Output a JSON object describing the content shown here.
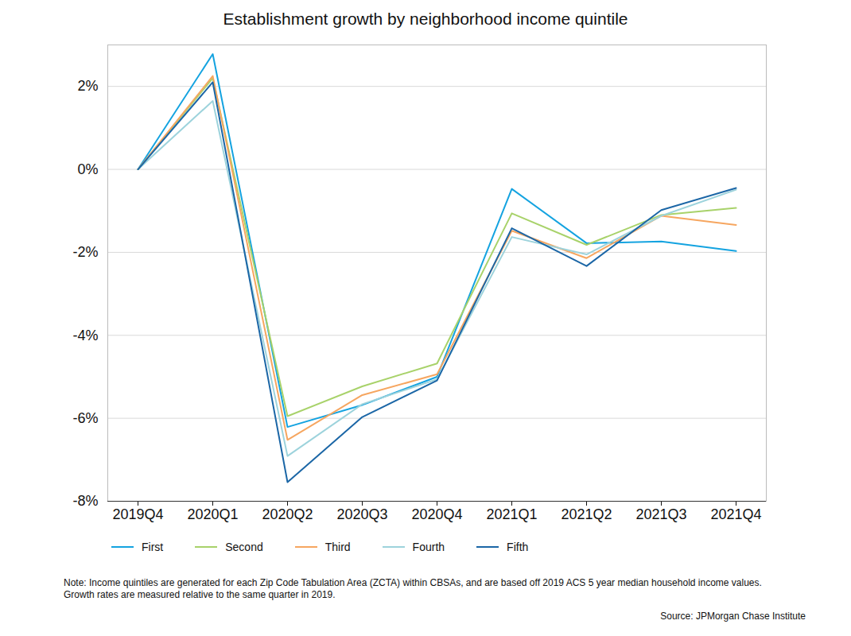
{
  "chart_data": {
    "type": "line",
    "title": "Establishment growth by neighborhood income quintile",
    "note": "Note: Income quintiles are generated for each Zip Code Tabulation Area (ZCTA) within CBSAs, and are based off 2019 ACS 5 year median household income values. Growth rates are measured relative to the same quarter in 2019.",
    "source": "Source: JPMorgan Chase Institute",
    "x": [
      "2019Q4",
      "2020Q1",
      "2020Q2",
      "2020Q3",
      "2020Q4",
      "2021Q1",
      "2021Q2",
      "2021Q3",
      "2021Q4"
    ],
    "series": [
      {
        "name": "First",
        "color": "#14a3e0",
        "values": [
          0,
          2.78,
          -6.21,
          -5.68,
          -5.0,
          -0.47,
          -1.78,
          -1.74,
          -1.97
        ]
      },
      {
        "name": "Second",
        "color": "#a8d26a",
        "values": [
          0,
          2.2,
          -5.95,
          -5.23,
          -4.68,
          -1.06,
          -1.82,
          -1.1,
          -0.93
        ]
      },
      {
        "name": "Third",
        "color": "#f6a660",
        "values": [
          0,
          2.25,
          -6.52,
          -5.44,
          -4.94,
          -1.48,
          -2.14,
          -1.12,
          -1.34
        ]
      },
      {
        "name": "Fourth",
        "color": "#9dd3dc",
        "values": [
          0,
          1.65,
          -6.91,
          -5.66,
          -5.06,
          -1.63,
          -2.05,
          -1.12,
          -0.49
        ]
      },
      {
        "name": "Fifth",
        "color": "#1b66a6",
        "values": [
          0,
          2.1,
          -7.54,
          -5.97,
          -5.09,
          -1.42,
          -2.33,
          -0.98,
          -0.45
        ]
      }
    ],
    "ylim": [
      -8,
      3
    ],
    "yticks": [
      {
        "value": -8,
        "label": "-8%"
      },
      {
        "value": -6,
        "label": "-6%"
      },
      {
        "value": -4,
        "label": "-4%"
      },
      {
        "value": -2,
        "label": "-2%"
      },
      {
        "value": 0,
        "label": "0%"
      },
      {
        "value": 2,
        "label": "2%"
      }
    ],
    "grid": true,
    "legend": "bottom"
  }
}
